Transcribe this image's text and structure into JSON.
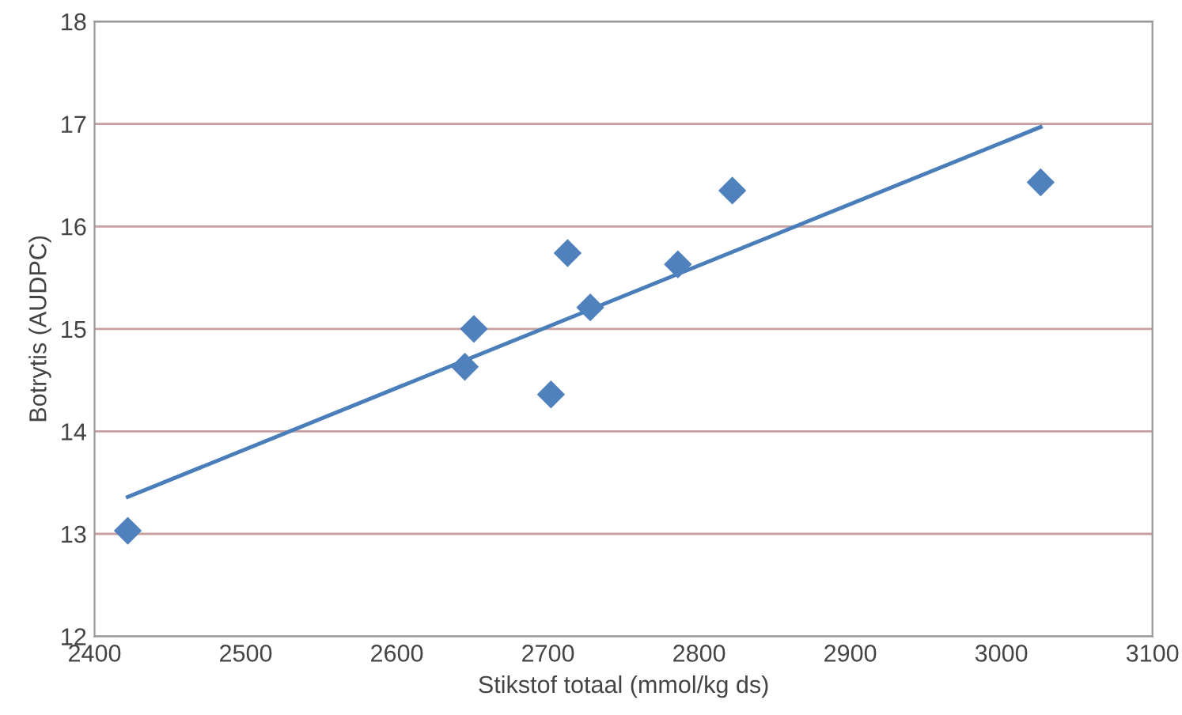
{
  "chart_data": {
    "type": "scatter",
    "xlabel": "Stikstof totaal (mmol/kg ds)",
    "ylabel": "Botrytis (AUDPC)",
    "series": [
      {
        "x": [
          2422,
          2645,
          2651,
          2702,
          2713,
          2728,
          2786,
          2822,
          3026
        ],
        "values": [
          13.03,
          14.63,
          15.0,
          14.36,
          15.74,
          15.21,
          15.63,
          16.35,
          16.43
        ],
        "color": "#4f81bd",
        "marker": "diamond"
      },
      {
        "type": "line",
        "x": [
          2422,
          3026
        ],
        "values": [
          13.36,
          16.97
        ],
        "color": "#4a7ebb"
      }
    ],
    "xlim": [
      2400,
      3100
    ],
    "xticks": [
      2400,
      2500,
      2600,
      2700,
      2800,
      2900,
      3000,
      3100
    ],
    "ylim": [
      12,
      18
    ],
    "yticks": [
      12,
      13,
      14,
      15,
      16,
      17,
      18
    ],
    "grid": "y"
  }
}
